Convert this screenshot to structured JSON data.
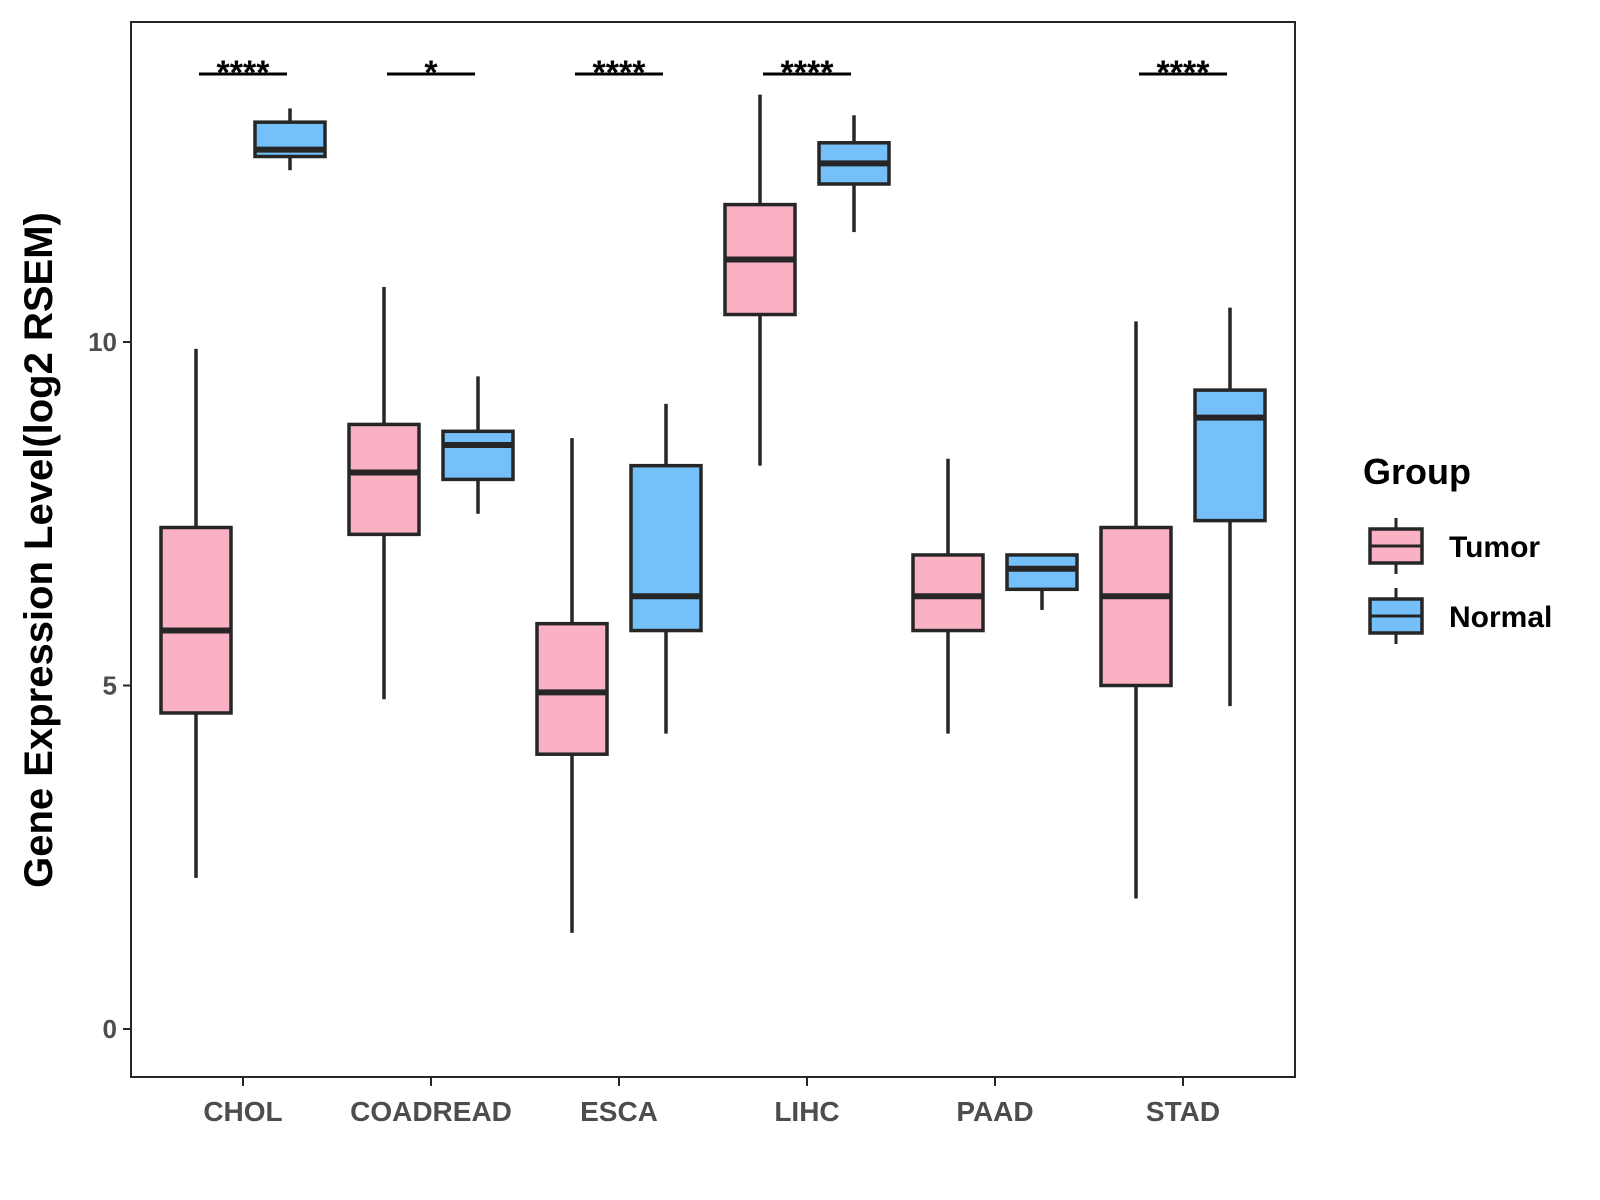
{
  "chart_data": {
    "type": "boxplot",
    "title": "",
    "xlabel": "",
    "ylabel": "Gene Expression Level(log2 RSEM)",
    "ylim": [
      -0.7,
      14.6
    ],
    "yticks": [
      0,
      5,
      10
    ],
    "ytick_labels": [
      "0",
      "5",
      "10"
    ],
    "categories": [
      "CHOL",
      "COADREAD",
      "ESCA",
      "LIHC",
      "PAAD",
      "STAD"
    ],
    "legend": {
      "title": "Group",
      "position": "right",
      "entries": [
        "Tumor",
        "Normal"
      ]
    },
    "colors": {
      "Tumor": "#fbb1c4",
      "Normal": "#75c0f8",
      "stroke": "#262626"
    },
    "series": [
      {
        "name": "Tumor",
        "boxes": [
          {
            "category": "CHOL",
            "min": 2.2,
            "q1": 4.6,
            "median": 5.8,
            "q3": 7.3,
            "max": 9.9
          },
          {
            "category": "COADREAD",
            "min": 4.8,
            "q1": 7.2,
            "median": 8.1,
            "q3": 8.8,
            "max": 10.8
          },
          {
            "category": "ESCA",
            "min": 1.4,
            "q1": 4.0,
            "median": 4.9,
            "q3": 5.9,
            "max": 8.6
          },
          {
            "category": "LIHC",
            "min": 8.2,
            "q1": 10.4,
            "median": 11.2,
            "q3": 12.0,
            "max": 13.6
          },
          {
            "category": "PAAD",
            "min": 4.3,
            "q1": 5.8,
            "median": 6.3,
            "q3": 6.9,
            "max": 8.3
          },
          {
            "category": "STAD",
            "min": 1.9,
            "q1": 5.0,
            "median": 6.3,
            "q3": 7.3,
            "max": 10.3
          }
        ]
      },
      {
        "name": "Normal",
        "boxes": [
          {
            "category": "CHOL",
            "min": 12.5,
            "q1": 12.7,
            "median": 12.8,
            "q3": 13.2,
            "max": 13.4
          },
          {
            "category": "COADREAD",
            "min": 7.5,
            "q1": 8.0,
            "median": 8.5,
            "q3": 8.7,
            "max": 9.5
          },
          {
            "category": "ESCA",
            "min": 4.3,
            "q1": 5.8,
            "median": 6.3,
            "q3": 8.2,
            "max": 9.1
          },
          {
            "category": "LIHC",
            "min": 11.6,
            "q1": 12.3,
            "median": 12.6,
            "q3": 12.9,
            "max": 13.3
          },
          {
            "category": "PAAD",
            "min": 6.1,
            "q1": 6.4,
            "median": 6.7,
            "q3": 6.9,
            "max": 6.9
          },
          {
            "category": "STAD",
            "min": 4.7,
            "q1": 7.4,
            "median": 8.9,
            "q3": 9.3,
            "max": 10.5
          }
        ]
      }
    ],
    "annotations": [
      {
        "category": "CHOL",
        "text": "****"
      },
      {
        "category": "COADREAD",
        "text": "*"
      },
      {
        "category": "ESCA",
        "text": "****"
      },
      {
        "category": "LIHC",
        "text": "****"
      },
      {
        "category": "STAD",
        "text": "****"
      }
    ]
  }
}
